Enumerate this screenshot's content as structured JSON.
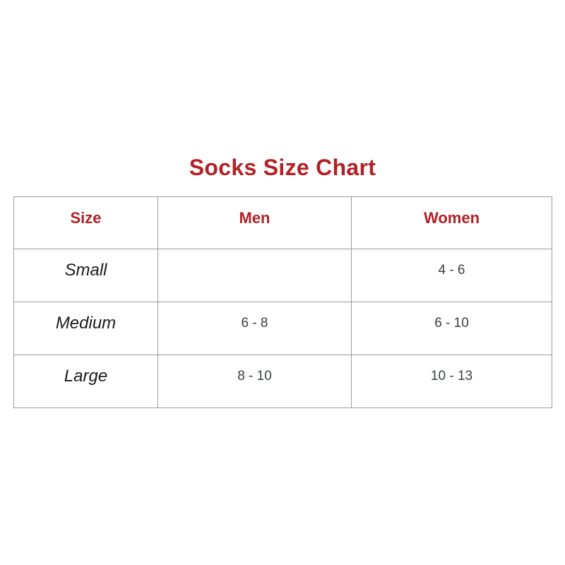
{
  "page_title": "Socks Size Chart",
  "colors": {
    "accent_red": "#b32025",
    "border_gray": "#9b9b9b",
    "size_label_text": "#1b1b1b",
    "value_text": "#3c4043",
    "background": "#ffffff"
  },
  "chart_data": {
    "type": "table",
    "title": "Socks Size Chart",
    "columns": [
      "Size",
      "Men",
      "Women"
    ],
    "rows": [
      [
        "Small",
        "",
        "4 - 6"
      ],
      [
        "Medium",
        "6 - 8",
        "6 - 10"
      ],
      [
        "Large",
        "8 - 10",
        "10 - 13"
      ]
    ]
  }
}
